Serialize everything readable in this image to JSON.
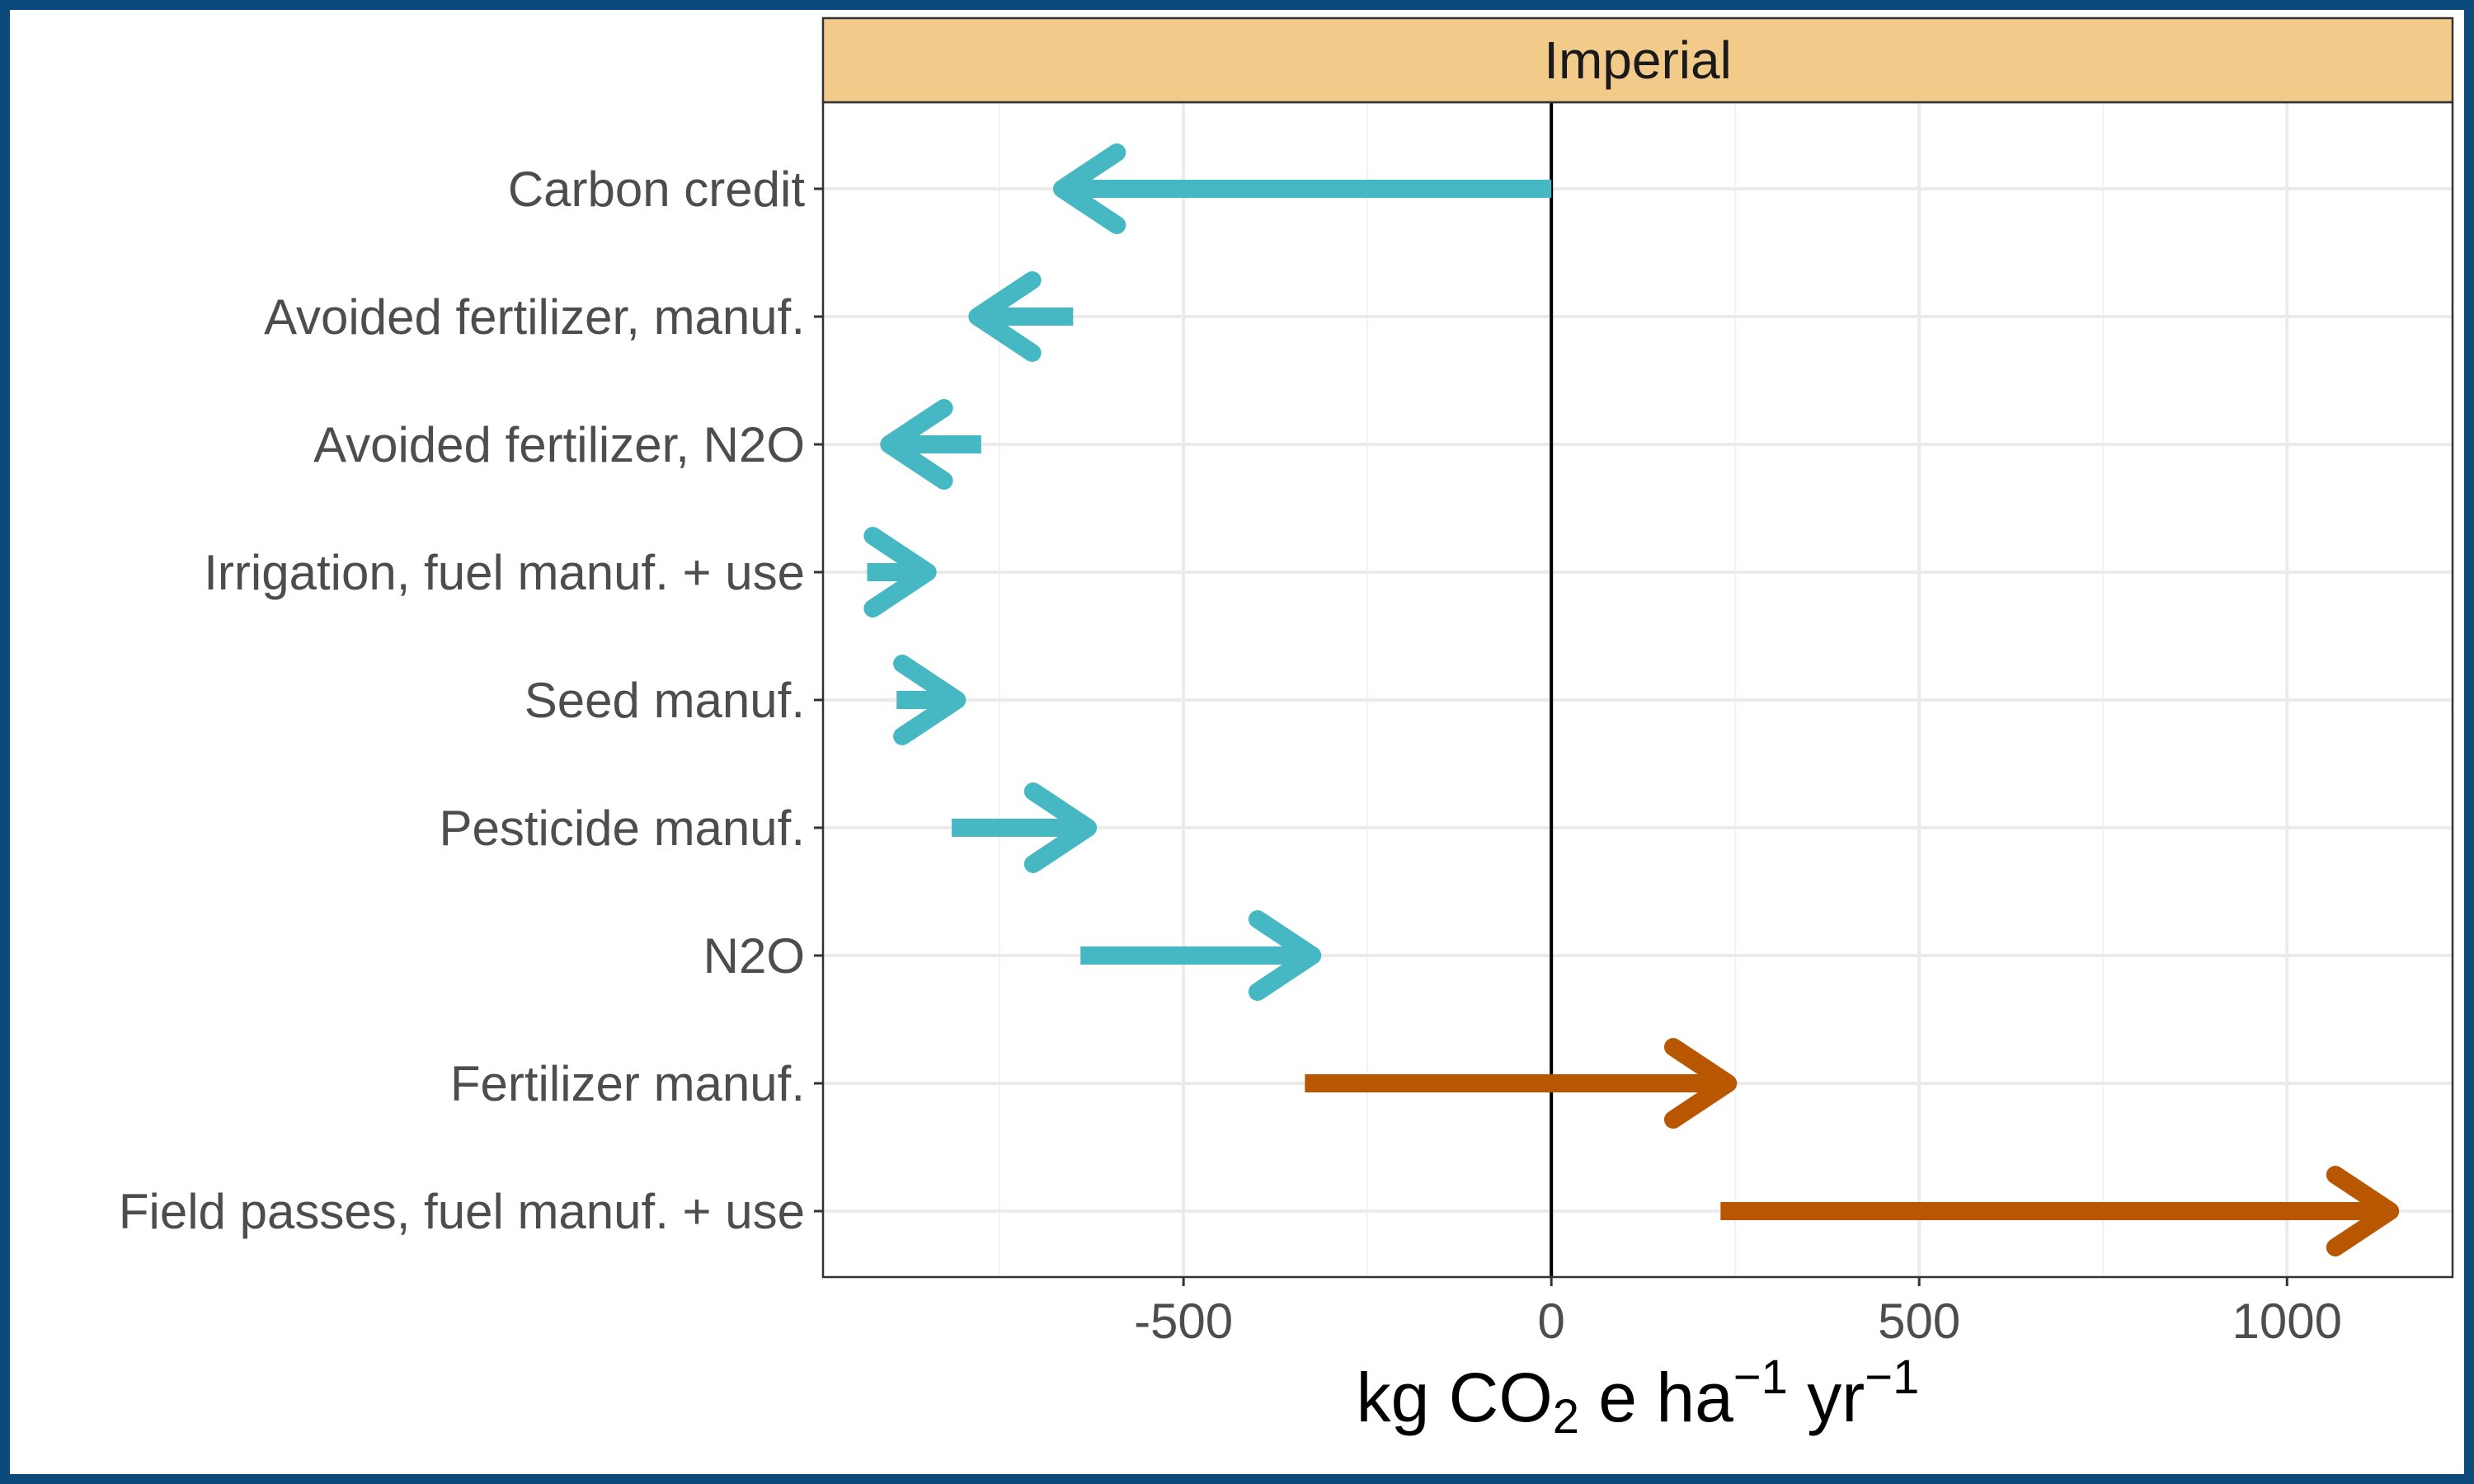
{
  "chart_data": {
    "type": "waterfall-arrows",
    "facet": "Imperial",
    "xlabel": {
      "prefix": "kg CO",
      "sub": "2",
      "mid1": " e ha",
      "sup1": "−1",
      "mid2": " yr",
      "sup2": "−1"
    },
    "xlim": [
      -990,
      1225
    ],
    "xticks": [
      -500,
      0,
      500,
      1000
    ],
    "xtick_labels": [
      "-500",
      "0",
      "500",
      "1000"
    ],
    "grid": true,
    "vline_at": 0,
    "colors": {
      "decrease": "#45b8c4",
      "increase": "#b85700",
      "strip": "#f2cb8a",
      "frame": "#0b4a7a"
    },
    "categories": [
      "Carbon credit",
      "Avoided fertilizer, manuf.",
      "Avoided fertilizer, N2O",
      "Irrigation, fuel manuf. + use",
      "Seed manuf.",
      "Pesticide manuf.",
      "N2O",
      "Fertilizer manuf.",
      "Field passes, fuel manuf. + use"
    ],
    "arrows": [
      {
        "category": "Carbon credit",
        "start": 0,
        "end": -665,
        "color": "decrease"
      },
      {
        "category": "Avoided fertilizer, manuf.",
        "start": -650,
        "end": -780,
        "color": "decrease"
      },
      {
        "category": "Avoided fertilizer, N2O",
        "start": -775,
        "end": -900,
        "color": "decrease"
      },
      {
        "category": "Irrigation, fuel manuf. + use",
        "start": -930,
        "end": -848,
        "color": "decrease"
      },
      {
        "category": "Seed manuf.",
        "start": -890,
        "end": -808,
        "color": "decrease"
      },
      {
        "category": "Pesticide manuf.",
        "start": -815,
        "end": -630,
        "color": "decrease"
      },
      {
        "category": "N2O",
        "start": -640,
        "end": -325,
        "color": "decrease"
      },
      {
        "category": "Fertilizer manuf.",
        "start": -335,
        "end": 240,
        "color": "increase"
      },
      {
        "category": "Field passes, fuel manuf. + use",
        "start": 230,
        "end": 1140,
        "color": "increase"
      }
    ]
  }
}
